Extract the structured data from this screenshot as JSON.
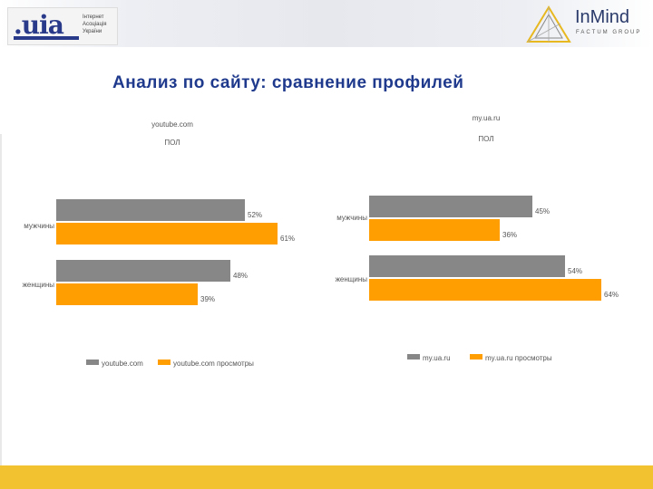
{
  "header": {
    "uia_logo": ".uia",
    "uia_sub": [
      "Інтернет",
      "Асоціація",
      "України"
    ],
    "inmind_name": "InMind",
    "inmind_sub": "FACTUM GROUP"
  },
  "title": "Анализ по сайту:  сравнение профилей",
  "colors": {
    "gray": "#878787",
    "orange": "#ff9e00",
    "title": "#1f3a8c",
    "footer": "#f2c230"
  },
  "chart_data": [
    {
      "type": "bar",
      "orientation": "horizontal",
      "title": "youtube.com",
      "subtitle": "ПОЛ",
      "categories": [
        "мужчины",
        "женщины"
      ],
      "series": [
        {
          "name": "youtube.com",
          "color": "#878787",
          "values": [
            52,
            48
          ]
        },
        {
          "name": "youtube.com просмотры",
          "color": "#ff9e00",
          "values": [
            61,
            39
          ]
        }
      ],
      "xlim": [
        0,
        100
      ],
      "value_suffix": "%",
      "legend": "bottom"
    },
    {
      "type": "bar",
      "orientation": "horizontal",
      "title": "my.ua.ru",
      "subtitle": "ПОЛ",
      "categories": [
        "мужчины",
        "женщины"
      ],
      "series": [
        {
          "name": "my.ua.ru",
          "color": "#878787",
          "values": [
            45,
            54
          ]
        },
        {
          "name": "my.ua.ru просмотры",
          "color": "#ff9e00",
          "values": [
            36,
            64
          ]
        }
      ],
      "xlim": [
        0,
        100
      ],
      "value_suffix": "%",
      "legend": "bottom"
    }
  ]
}
